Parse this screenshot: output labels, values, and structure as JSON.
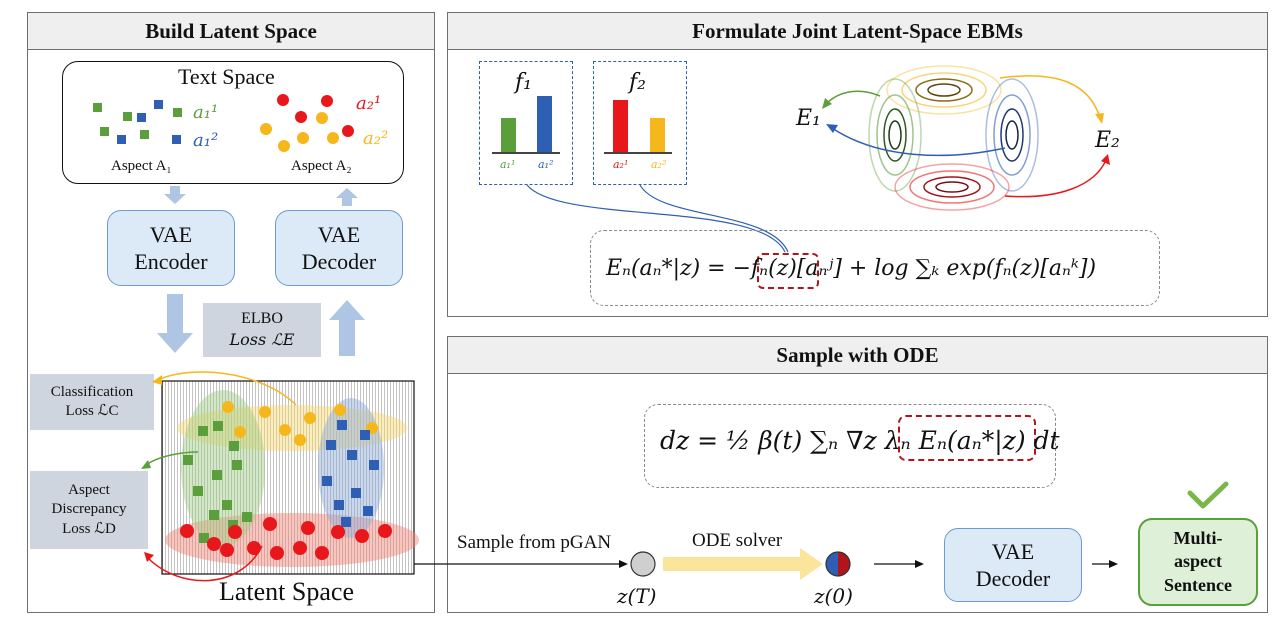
{
  "panels": {
    "build": {
      "title": "Build Latent Space"
    },
    "formulate": {
      "title": "Formulate Joint Latent-Space EBMs"
    },
    "sample": {
      "title": "Sample with ODE"
    }
  },
  "text_space": {
    "title": "Text Space",
    "aspect1_label": "Aspect A₁",
    "aspect2_label": "Aspect A₂",
    "a11": "a₁¹",
    "a12": "a₁²",
    "a21": "a₂¹",
    "a22": "a₂²"
  },
  "vae_encoder": {
    "line1": "VAE",
    "line2": "Encoder"
  },
  "vae_decoder": {
    "line1": "VAE",
    "line2": "Decoder"
  },
  "elbo": {
    "line1": "ELBO",
    "line2": "Loss ℒE"
  },
  "classification_loss": {
    "line1": "Classification",
    "line2": "Loss ℒC"
  },
  "aspect_loss": {
    "line1": "Aspect",
    "line2": "Discrepancy",
    "line3": "Loss ℒD"
  },
  "latent_space": {
    "label": "Latent Space"
  },
  "classifiers": {
    "f1": "f₁",
    "f2": "f₂",
    "f1_bars": [
      "a₁¹",
      "a₁²"
    ],
    "f2_bars": [
      "a₂¹",
      "a₂²"
    ]
  },
  "energy": {
    "e1": "E₁",
    "e2": "E₂"
  },
  "equations": {
    "energy": "Eₙ(aₙ*|z) = −fₙ(z)[aₙʲ] + log ∑ₖ exp(fₙ(z)[aₙᵏ])",
    "ode": "dz = ½ β(t) ∑ₙ ∇z λₙ Eₙ(aₙ*|z) dt"
  },
  "sampling": {
    "sample_from": "Sample from pGAN",
    "ode_solver": "ODE solver",
    "zT": "z(T)",
    "z0": "z(0)"
  },
  "final_decoder": {
    "line1": "VAE",
    "line2": "Decoder"
  },
  "output": {
    "line1": "Multi-",
    "line2": "aspect",
    "line3": "Sentence"
  },
  "colors": {
    "green": "#5b9e3c",
    "blue": "#2f5fb4",
    "red": "#e8171b",
    "yellow": "#f6b71c",
    "vae_fill": "#dce9f6",
    "loss_fill": "#cfd5de",
    "output_fill": "#dff0d8",
    "check": "#7ab648"
  }
}
